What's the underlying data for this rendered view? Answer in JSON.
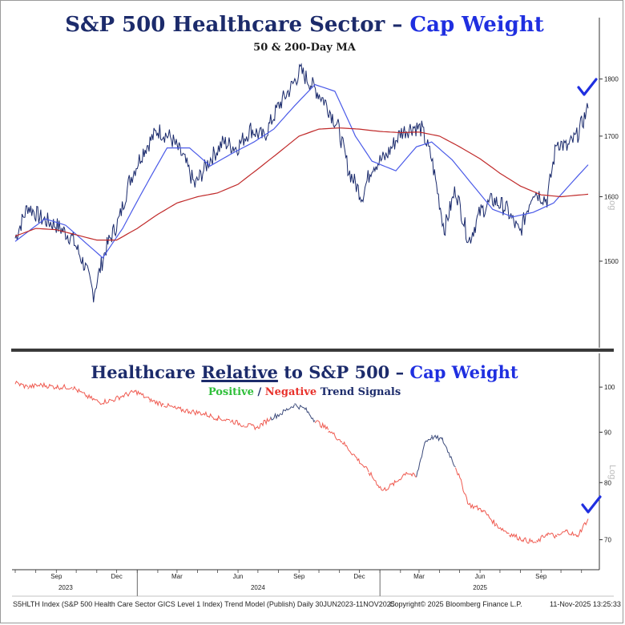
{
  "top_title": {
    "main": "S&P 500 Healthcare Sector – ",
    "accent": "Cap Weight"
  },
  "top_subtitle": "50 & 200-Day MA",
  "bottom_title": {
    "pre": "Healthcare ",
    "underlined": "Relative",
    "post": " to S&P 500 – ",
    "accent": "Cap Weight"
  },
  "bottom_subtitle": {
    "positive": "Positive",
    "slash": " / ",
    "negative": "Negative",
    "rest": " Trend Signals"
  },
  "log_label": "Log",
  "footer": {
    "left": "S5HLTH Index (S&P 500 Health Care Sector GICS Level 1 Index) Trend Model (Publish) Daily 30JUN2023-11NOV2025",
    "mid": "Copyright© 2025 Bloomberg Finance L.P.",
    "right": "11-Nov-2025 13:25:33"
  },
  "colors": {
    "price": "#1a2a6c",
    "ma50": "#4a5ae8",
    "ma200": "#c02a2a",
    "positive": "#3b4a7a",
    "negative": "#ef5a50",
    "check": "#1f2fe0"
  },
  "chart_data": [
    {
      "type": "line",
      "title": "S&P 500 Healthcare Sector – Cap Weight",
      "subtitle": "50 & 200-Day MA",
      "yscale": "log",
      "ylim": [
        1400,
        1830
      ],
      "yticks": [
        1500,
        1600,
        1700,
        1800
      ],
      "x_tick_labels": [
        "Sep",
        "Dec",
        "Mar",
        "Jun",
        "Sep",
        "Dec",
        "Mar",
        "Jun",
        "Sep"
      ],
      "x_year_labels": [
        "2023",
        "2024",
        "2025"
      ],
      "series": [
        {
          "kind": "price",
          "dates": [
            "2023-07-01",
            "2023-07-20",
            "2023-08-10",
            "2023-09-01",
            "2023-09-25",
            "2023-10-15",
            "2023-10-27",
            "2023-11-15",
            "2023-12-05",
            "2023-12-20",
            "2024-01-10",
            "2024-02-01",
            "2024-02-20",
            "2024-03-10",
            "2024-03-28",
            "2024-04-19",
            "2024-05-10",
            "2024-05-30",
            "2024-06-20",
            "2024-07-10",
            "2024-08-01",
            "2024-08-20",
            "2024-09-03",
            "2024-09-20",
            "2024-10-10",
            "2024-10-30",
            "2024-11-15",
            "2024-12-05",
            "2024-12-20",
            "2025-01-10",
            "2025-02-01",
            "2025-02-20",
            "2025-03-05",
            "2025-03-20",
            "2025-04-08",
            "2025-04-25",
            "2025-05-15",
            "2025-06-01",
            "2025-06-20",
            "2025-07-10",
            "2025-07-31",
            "2025-08-20",
            "2025-09-10",
            "2025-09-25",
            "2025-10-10",
            "2025-10-25",
            "2025-11-11"
          ],
          "values": [
            1535,
            1585,
            1565,
            1555,
            1535,
            1490,
            1452,
            1520,
            1565,
            1625,
            1675,
            1710,
            1698,
            1665,
            1618,
            1660,
            1690,
            1680,
            1712,
            1698,
            1752,
            1785,
            1815,
            1790,
            1760,
            1715,
            1642,
            1600,
            1650,
            1665,
            1706,
            1716,
            1712,
            1662,
            1548,
            1612,
            1530,
            1575,
            1595,
            1582,
            1542,
            1610,
            1595,
            1692,
            1680,
            1700,
            1748
          ]
        },
        {
          "kind": "ma50",
          "dates": [
            "2023-07-01",
            "2023-08-15",
            "2023-09-15",
            "2023-10-15",
            "2023-11-10",
            "2023-12-10",
            "2024-01-15",
            "2024-02-15",
            "2024-03-20",
            "2024-04-20",
            "2024-05-25",
            "2024-06-25",
            "2024-07-25",
            "2024-08-25",
            "2024-09-25",
            "2024-10-25",
            "2024-11-25",
            "2024-12-20",
            "2025-01-25",
            "2025-02-25",
            "2025-03-20",
            "2025-04-20",
            "2025-05-20",
            "2025-06-20",
            "2025-07-20",
            "2025-08-20",
            "2025-09-20",
            "2025-10-15",
            "2025-11-11"
          ],
          "values": [
            1530,
            1565,
            1555,
            1528,
            1505,
            1550,
            1620,
            1680,
            1680,
            1650,
            1672,
            1690,
            1712,
            1752,
            1790,
            1778,
            1700,
            1658,
            1642,
            1682,
            1690,
            1660,
            1620,
            1580,
            1568,
            1575,
            1590,
            1620,
            1652
          ]
        },
        {
          "kind": "ma200",
          "dates": [
            "2023-07-01",
            "2023-08-01",
            "2023-09-01",
            "2023-10-01",
            "2023-11-01",
            "2023-12-01",
            "2024-01-01",
            "2024-02-01",
            "2024-03-01",
            "2024-04-01",
            "2024-05-01",
            "2024-06-01",
            "2024-07-01",
            "2024-08-01",
            "2024-09-01",
            "2024-10-01",
            "2024-11-01",
            "2024-12-01",
            "2025-01-01",
            "2025-02-01",
            "2025-03-01",
            "2025-04-01",
            "2025-05-01",
            "2025-06-01",
            "2025-07-01",
            "2025-08-01",
            "2025-09-01",
            "2025-10-01",
            "2025-11-11"
          ],
          "values": [
            1538,
            1550,
            1548,
            1540,
            1532,
            1532,
            1550,
            1572,
            1590,
            1600,
            1606,
            1620,
            1645,
            1672,
            1700,
            1712,
            1714,
            1712,
            1708,
            1706,
            1707,
            1700,
            1682,
            1662,
            1638,
            1617,
            1603,
            1600,
            1604
          ]
        }
      ]
    },
    {
      "type": "line",
      "title": "Healthcare Relative to S&P 500 – Cap Weight",
      "subtitle": "Positive / Negative Trend Signals",
      "yscale": "log",
      "ylim": [
        66,
        106
      ],
      "yticks": [
        70,
        80,
        90,
        100
      ],
      "x_tick_labels": [
        "Sep",
        "Dec",
        "Mar",
        "Jun",
        "Sep",
        "Dec",
        "Mar",
        "Jun",
        "Sep"
      ],
      "x_year_labels": [
        "2023",
        "2024",
        "2025"
      ],
      "dates": [
        "2023-07-01",
        "2023-07-20",
        "2023-08-10",
        "2023-09-01",
        "2023-09-25",
        "2023-10-15",
        "2023-11-05",
        "2023-11-25",
        "2023-12-10",
        "2023-12-30",
        "2024-01-20",
        "2024-02-10",
        "2024-03-01",
        "2024-03-20",
        "2024-04-10",
        "2024-05-01",
        "2024-05-20",
        "2024-06-10",
        "2024-06-30",
        "2024-07-20",
        "2024-08-05",
        "2024-08-25",
        "2024-09-10",
        "2024-09-25",
        "2024-10-15",
        "2024-11-05",
        "2024-11-25",
        "2024-12-15",
        "2025-01-05",
        "2025-01-25",
        "2025-02-10",
        "2025-02-25",
        "2025-03-10",
        "2025-03-20",
        "2025-04-05",
        "2025-04-25",
        "2025-05-15",
        "2025-06-05",
        "2025-06-25",
        "2025-07-15",
        "2025-08-05",
        "2025-08-25",
        "2025-09-10",
        "2025-09-25",
        "2025-10-10",
        "2025-10-25",
        "2025-11-11"
      ],
      "values": [
        101,
        100,
        100.5,
        100,
        100,
        98,
        96.5,
        97,
        98,
        99,
        97,
        96,
        95,
        94.5,
        94,
        93,
        92.5,
        91.5,
        91,
        93,
        94,
        96,
        95,
        92.5,
        90.5,
        88,
        85,
        82,
        78.5,
        80,
        82,
        81,
        88,
        89,
        88.5,
        83,
        76,
        75,
        72.5,
        71,
        70,
        69.5,
        71,
        70.5,
        71.5,
        70.5,
        73.5
      ],
      "trend": [
        "negative",
        "negative",
        "negative",
        "negative",
        "negative",
        "negative",
        "negative",
        "negative",
        "negative",
        "negative",
        "negative",
        "negative",
        "negative",
        "negative",
        "negative",
        "negative",
        "negative",
        "negative",
        "negative",
        "positive",
        "positive",
        "positive",
        "positive",
        "negative",
        "negative",
        "negative",
        "negative",
        "negative",
        "negative",
        "negative",
        "negative",
        "positive",
        "positive",
        "positive",
        "positive",
        "negative",
        "negative",
        "negative",
        "negative",
        "negative",
        "negative",
        "negative",
        "negative",
        "negative",
        "negative",
        "negative",
        "positive"
      ]
    }
  ]
}
